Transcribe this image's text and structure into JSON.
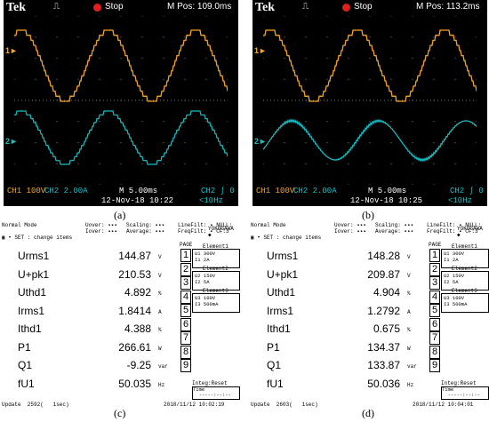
{
  "scopes": [
    {
      "brand": "Tek",
      "trigger_glyph": "⎍",
      "status": "Stop",
      "mpos": "M Pos: 109.0ms",
      "ch1": "CH1  100V",
      "ch2": "CH2  2.00A",
      "timebase": "M 5.00ms",
      "ch2_trig": "CH2 ∫ 0",
      "date": "12-Nov-18 10:22",
      "freq": "<10Hz",
      "ch1_mark": "1►",
      "ch2_mark": "2►"
    },
    {
      "brand": "Tek",
      "trigger_glyph": "⎍",
      "status": "Stop",
      "mpos": "M Pos: 113.2ms",
      "ch1": "CH1  100V",
      "ch2": "CH2  2.00A",
      "timebase": "M 5.00ms",
      "ch2_trig": "CH2 ∫ 0",
      "date": "12-Nov-18 10:25",
      "freq": "<10Hz",
      "ch1_mark": "1►",
      "ch2_mark": "2►"
    }
  ],
  "captions": {
    "a": "(a)",
    "b": "(b)",
    "c": "(c)",
    "d": "(d)"
  },
  "meters": [
    {
      "mode": "Normal Mode",
      "umeta": "Uover: ▪▪▪ \nIover: ▪▪▪",
      "scal": "Scaling: ▪▪▪\nAverage: ▪▪▪",
      "line": "LineFilt: ▪ NULL:\nFreqFilt: ▪ CF:3",
      "brand": "YOKOGAWA ◆",
      "change": "▣ • SET : change items",
      "page": "PAGE",
      "rows": [
        {
          "name": "Urms1",
          "value": "144.87",
          "unit": "V"
        },
        {
          "name": "U+pk1",
          "value": "210.53",
          "unit": "V"
        },
        {
          "name": "Uthd1",
          "value": "4.892",
          "unit": "%"
        },
        {
          "name": "Irms1",
          "value": "1.8414",
          "unit": "A"
        },
        {
          "name": "Ithd1",
          "value": "4.388",
          "unit": "%"
        },
        {
          "name": "P1",
          "value": "266.61",
          "unit": "W"
        },
        {
          "name": "Q1",
          "value": "-9.25",
          "unit": "var"
        },
        {
          "name": "fU1",
          "value": "50.035",
          "unit": "Hz"
        }
      ],
      "pages": [
        "1",
        "2",
        "3",
        "4",
        "5",
        "6",
        "7",
        "8",
        "9"
      ],
      "elements": [
        {
          "title": "Element1",
          "l1": "U1  300V",
          "l2": "I1    2A"
        },
        {
          "title": "Element2",
          "l1": "U2  150V",
          "l2": "I2    5A"
        },
        {
          "title": "Element3",
          "l1": "U3  100V",
          "l2": "I3 500mA"
        }
      ],
      "integ": "Integ:Reset",
      "integ_time": "Time\n  -----:--:--",
      "update": "Update  2592(   1sec)",
      "stamp": "2018/11/12 10:02:19"
    },
    {
      "mode": "Normal Mode",
      "umeta": "Uover: ▪▪▪ \nIover: ▪▪▪",
      "scal": "Scaling: ▪▪▪\nAverage: ▪▪▪",
      "line": "LineFilt: ▪ NULL:\nFreqFilt: ▪ CF:3",
      "brand": "YOKOGAWA ◆",
      "change": "▣ • SET : change items",
      "page": "PAGE",
      "rows": [
        {
          "name": "Urms1",
          "value": "148.28",
          "unit": "V"
        },
        {
          "name": "U+pk1",
          "value": "209.87",
          "unit": "V"
        },
        {
          "name": "Uthd1",
          "value": "4.904",
          "unit": "%"
        },
        {
          "name": "Irms1",
          "value": "1.2792",
          "unit": "A"
        },
        {
          "name": "Ithd1",
          "value": "0.675",
          "unit": "%"
        },
        {
          "name": "P1",
          "value": "134.37",
          "unit": "W"
        },
        {
          "name": "Q1",
          "value": "133.87",
          "unit": "var"
        },
        {
          "name": "fU1",
          "value": "50.036",
          "unit": "Hz"
        }
      ],
      "pages": [
        "1",
        "2",
        "3",
        "4",
        "5",
        "6",
        "7",
        "8",
        "9"
      ],
      "elements": [
        {
          "title": "Element1",
          "l1": "U1  300V",
          "l2": "I1    2A"
        },
        {
          "title": "Element2",
          "l1": "U2  150V",
          "l2": "I2    5A"
        },
        {
          "title": "Element3",
          "l1": "U3  100V",
          "l2": "I3 500mA"
        }
      ],
      "integ": "Integ:Reset",
      "integ_time": "Time\n  -----:--:--",
      "update": "Update  2603(   1sec)",
      "stamp": "2018/11/12 10:04:01"
    }
  ],
  "colors": {
    "ch1": "#f5a623",
    "ch2": "#17c1c7",
    "grid": "#7a7a7a",
    "stop": "#e0201c"
  }
}
